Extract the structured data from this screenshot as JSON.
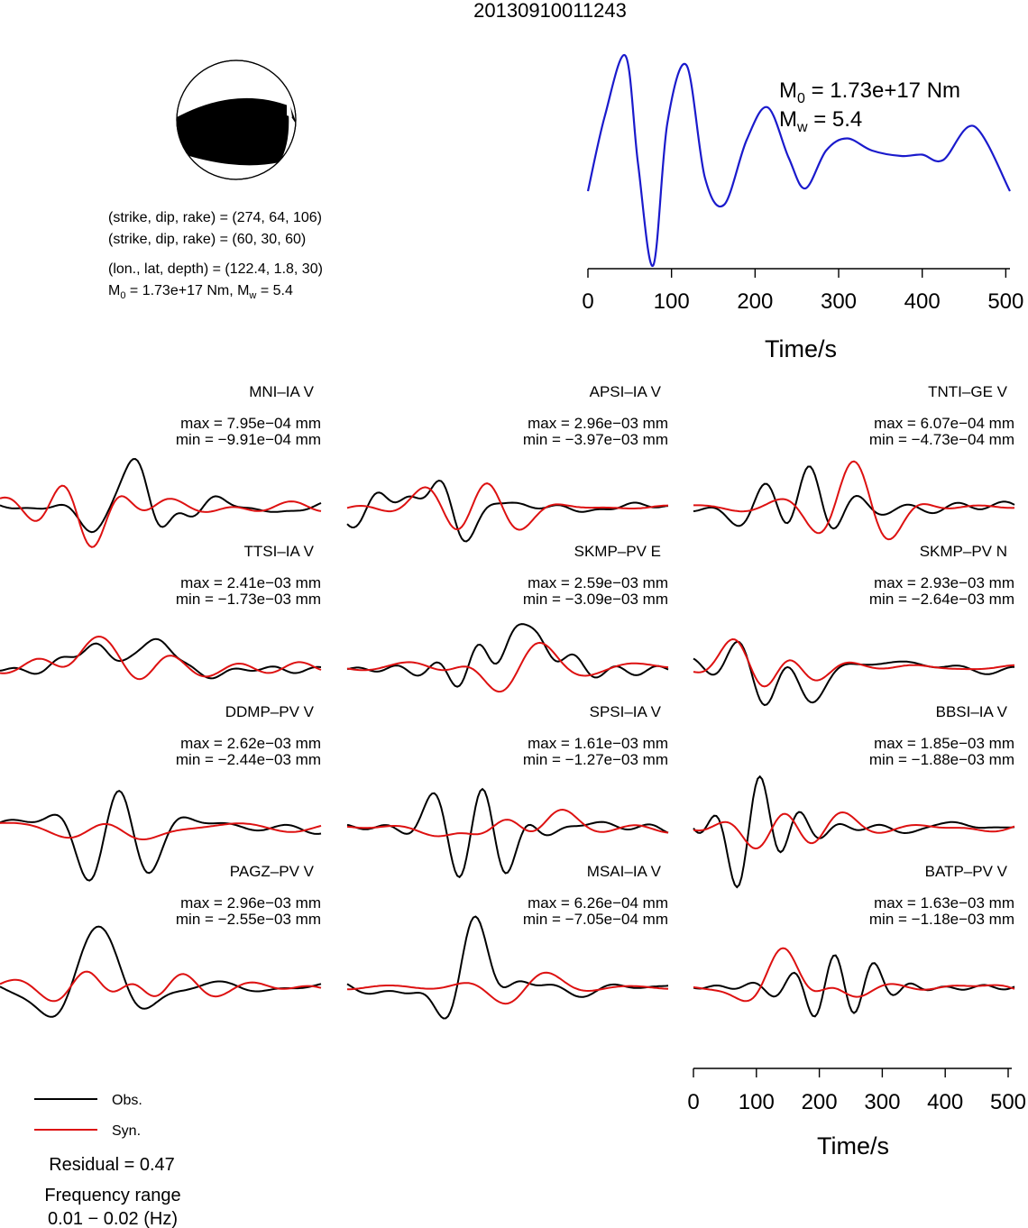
{
  "title": "20130910011243",
  "mechanism": {
    "line1": "(strike, dip, rake) = (274, 64, 106)",
    "line2": "(strike, dip, rake) = (60, 30, 60)",
    "line3": "(lon., lat, depth) = (122.4, 1.8, 30)",
    "line4_m0": "M",
    "line4_m0_sub": "0",
    "line4_m0_rest": " = 1.73e+17 Nm, M",
    "line4_mw_sub": "w",
    "line4_mw_rest": " = 5.4"
  },
  "stf": {
    "m0_label": "M",
    "m0_sub": "0",
    "m0_value": " = 1.73e+17 Nm",
    "mw_label": "M",
    "mw_sub": "w",
    "mw_value": " = 5.4",
    "xlabel": "Time/s",
    "xticks": [
      "0",
      "100",
      "200",
      "300",
      "400",
      "500"
    ],
    "color": "#1a1acc"
  },
  "colors": {
    "observed": "#000000",
    "synthetic": "#dd1111"
  },
  "stations": [
    {
      "name": "MNI–IA V",
      "max": "max = 7.95e−04 mm",
      "min": "min = −9.91e−04 mm"
    },
    {
      "name": "APSI–IA V",
      "max": "max = 2.96e−03 mm",
      "min": "min = −3.97e−03 mm"
    },
    {
      "name": "TNTI–GE V",
      "max": "max = 6.07e−04 mm",
      "min": "min = −4.73e−04 mm"
    },
    {
      "name": "TTSI–IA V",
      "max": "max = 2.41e−03 mm",
      "min": "min = −1.73e−03 mm"
    },
    {
      "name": "SKMP–PV E",
      "max": "max = 2.59e−03 mm",
      "min": "min = −3.09e−03 mm"
    },
    {
      "name": "SKMP–PV N",
      "max": "max = 2.93e−03 mm",
      "min": "min = −2.64e−03 mm"
    },
    {
      "name": "DDMP–PV V",
      "max": "max = 2.62e−03 mm",
      "min": "min = −2.44e−03 mm"
    },
    {
      "name": "SPSI–IA V",
      "max": "max = 1.61e−03 mm",
      "min": "min = −1.27e−03 mm"
    },
    {
      "name": "BBSI–IA V",
      "max": "max = 1.85e−03 mm",
      "min": "min = −1.88e−03 mm"
    },
    {
      "name": "PAGZ–PV V",
      "max": "max = 2.96e−03 mm",
      "min": "min = −2.55e−03 mm"
    },
    {
      "name": "MSAI–IA V",
      "max": "max = 6.26e−04 mm",
      "min": "min = −7.05e−04 mm"
    },
    {
      "name": "BATP–PV V",
      "max": "max = 1.63e−03 mm",
      "min": "min = −1.18e−03 mm"
    }
  ],
  "time_axis": {
    "xlabel": "Time/s",
    "xticks": [
      "0",
      "100",
      "200",
      "300",
      "400",
      "500"
    ]
  },
  "legend": {
    "obs": "Obs.",
    "syn": "Syn.",
    "residual": "Residual = 0.47",
    "freq_title": "Frequency range",
    "freq_value": "0.01 − 0.02 (Hz)"
  },
  "chart_data": {
    "type": "line",
    "title": "20130910011243",
    "source_time_function": {
      "x": [
        0,
        20,
        45,
        60,
        78,
        95,
        118,
        140,
        163,
        190,
        215,
        240,
        260,
        285,
        310,
        340,
        375,
        400,
        425,
        462,
        505
      ],
      "y": [
        0.0,
        0.55,
        1.0,
        0.2,
        -0.55,
        0.5,
        0.93,
        0.1,
        -0.1,
        0.38,
        0.62,
        0.25,
        0.02,
        0.3,
        0.39,
        0.3,
        0.26,
        0.27,
        0.23,
        0.48,
        0.0
      ],
      "xlabel": "Time/s",
      "xlim": [
        0,
        505
      ]
    },
    "series": [
      {
        "name": "Obs.",
        "color": "#000000"
      },
      {
        "name": "Syn.",
        "color": "#dd1111"
      }
    ],
    "residual": 0.47,
    "frequency_range_hz": [
      0.01,
      0.02
    ]
  }
}
